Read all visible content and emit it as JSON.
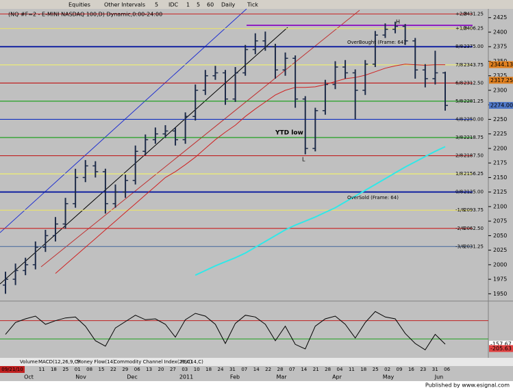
{
  "toolbar": [
    "Equities",
    "Other Intervals",
    "5",
    "IDC",
    "1",
    "5",
    "60",
    "Daily",
    "Tick"
  ],
  "tabs": [
    "Volume",
    "MACD(12,26,9,C)",
    "Money Flow(14)",
    "Commodity Channel Index(23,C)",
    "RSI(14,C)"
  ],
  "footer": "Published by www.esignal.com",
  "chart_data": {
    "type": "ohlc",
    "title": "(NQ #F=2 - E-MINI NASDAQ 100,D) Dynamic,0:00-24:00",
    "color": "#1c2a48",
    "open": [
      1965,
      1975,
      1990,
      2000,
      2030,
      2050,
      2070,
      2105,
      2150,
      2170,
      2160,
      2105,
      2125,
      2145,
      2195,
      2215,
      2225,
      2230,
      2215,
      2255,
      2300,
      2325,
      2330,
      2285,
      2330,
      2370,
      2385,
      2375,
      2335,
      2355,
      2285,
      2200,
      2265,
      2310,
      2340,
      2330,
      2300,
      2345,
      2395,
      2405,
      2410,
      2385,
      2335,
      2320,
      2330
    ],
    "high": [
      1988,
      2002,
      2012,
      2040,
      2060,
      2082,
      2115,
      2165,
      2180,
      2178,
      2165,
      2138,
      2155,
      2205,
      2224,
      2236,
      2240,
      2236,
      2262,
      2310,
      2335,
      2342,
      2335,
      2340,
      2378,
      2398,
      2401,
      2380,
      2365,
      2360,
      2290,
      2270,
      2318,
      2350,
      2352,
      2336,
      2352,
      2402,
      2415,
      2418,
      2414,
      2390,
      2345,
      2368,
      2332
    ],
    "low": [
      1950,
      1965,
      1982,
      1992,
      2022,
      2040,
      2062,
      2098,
      2142,
      2150,
      2088,
      2098,
      2115,
      2138,
      2188,
      2208,
      2218,
      2205,
      2208,
      2248,
      2292,
      2318,
      2275,
      2280,
      2325,
      2362,
      2368,
      2320,
      2325,
      2270,
      2190,
      2195,
      2258,
      2302,
      2320,
      2250,
      2292,
      2340,
      2390,
      2398,
      2378,
      2320,
      2305,
      2310,
      2265
    ],
    "close": [
      1975,
      1990,
      2000,
      2030,
      2050,
      2070,
      2105,
      2150,
      2170,
      2160,
      2105,
      2125,
      2145,
      2195,
      2215,
      2225,
      2230,
      2215,
      2255,
      2300,
      2325,
      2330,
      2285,
      2330,
      2370,
      2385,
      2375,
      2335,
      2355,
      2285,
      2200,
      2265,
      2310,
      2340,
      2330,
      2300,
      2345,
      2395,
      2405,
      2410,
      2385,
      2335,
      2320,
      2330,
      2274
    ],
    "overlays": [
      {
        "color": "#d02020",
        "values": [
          null,
          null,
          null,
          null,
          null,
          1985,
          2000,
          2015,
          2030,
          2045,
          2060,
          2075,
          2090,
          2105,
          2120,
          2135,
          2150,
          2160,
          2172,
          2185,
          2200,
          2215,
          2228,
          2240,
          2255,
          2268,
          2280,
          2292,
          2300,
          2305,
          2305,
          2306,
          2310,
          2315,
          2320,
          2322,
          2326,
          2332,
          2338,
          2342,
          2345,
          2344,
          2343,
          2344,
          2344
        ]
      },
      {
        "color": "#30e8e8",
        "values": [
          null,
          null,
          null,
          null,
          null,
          null,
          null,
          null,
          null,
          null,
          null,
          null,
          null,
          null,
          null,
          null,
          null,
          null,
          null,
          1982,
          1990,
          1998,
          2005,
          2012,
          2020,
          2030,
          2040,
          2050,
          2060,
          2068,
          2075,
          2082,
          2090,
          2098,
          2108,
          2118,
          2128,
          2138,
          2148,
          2158,
          2168,
          2177,
          2186,
          2195,
          2203
        ]
      }
    ],
    "ylim": [
      1937.5,
      2440
    ],
    "yticks": [
      1950,
      1975,
      2000,
      2025,
      2050,
      2075,
      2100,
      2125,
      2150,
      2175,
      2200,
      2225,
      2250,
      2275,
      2300,
      2325,
      2350,
      2375,
      2400,
      2425
    ],
    "levels": [
      {
        "name": "+2/8",
        "value": 2431.25,
        "color": "#c83030"
      },
      {
        "name": "+1/8",
        "value": 2406.25,
        "color": "#e8e070"
      },
      {
        "name": "8/8",
        "value": 2375,
        "label": "2375.00",
        "color": "#1020a0"
      },
      {
        "name": "7/8",
        "value": 2343.75,
        "color": "#f0f070"
      },
      {
        "name": "6/8",
        "value": 2312.5,
        "label": "2312.50",
        "color": "#c02020"
      },
      {
        "name": "5/8",
        "value": 2281.25,
        "color": "#20a020"
      },
      {
        "name": "4/8",
        "value": 2250,
        "label": "2250.00",
        "color": "#1030c0"
      },
      {
        "name": "3/8",
        "value": 2218.75,
        "color": "#20a020"
      },
      {
        "name": "2/8",
        "value": 2187.5,
        "label": "2187.50",
        "color": "#c02020"
      },
      {
        "name": "1/8",
        "value": 2156.25,
        "color": "#f0f070"
      },
      {
        "name": "0/8",
        "value": 2125,
        "label": "2125.00",
        "color": "#1020a0"
      },
      {
        "name": "-1/8",
        "value": 2093.75,
        "color": "#e8e070"
      },
      {
        "name": "-2/8",
        "value": 2062.5,
        "label": "2062.50",
        "color": "#c83030"
      },
      {
        "name": "-3/8",
        "value": 2031.25,
        "color": "#5070a0"
      }
    ],
    "price_boxes": [
      {
        "value": 2344.13,
        "color": "#e08020"
      },
      {
        "value": 2317.25,
        "color": "#e08020"
      },
      {
        "value": 2274,
        "label": "2274.00",
        "color": "#5078c8"
      }
    ],
    "annotations": [
      "YTD low",
      "L",
      "H",
      "OverBought (Frame: 64)",
      "OverSold (Frame: 64)"
    ],
    "x_labels": [
      "09/21/10",
      "11",
      "18",
      "25",
      "01",
      "08",
      "15",
      "22",
      "29",
      "06",
      "13",
      "20",
      "27",
      "03",
      "10",
      "18",
      "24",
      "31",
      "07",
      "14",
      "22",
      "28",
      "07",
      "14",
      "21",
      "28",
      "04",
      "11",
      "18",
      "25",
      "02",
      "09",
      "16",
      "23",
      "31",
      "06"
    ],
    "month_labels": [
      "Oct",
      "Nov",
      "Dec",
      "2011",
      "Feb",
      "Mar",
      "Apr",
      "May",
      "Jun"
    ],
    "oscillator": {
      "ylim": [
        -300,
        300
      ],
      "values": [
        -50,
        80,
        120,
        150,
        60,
        100,
        130,
        140,
        40,
        -120,
        -180,
        20,
        90,
        160,
        110,
        120,
        60,
        -80,
        110,
        180,
        150,
        60,
        -150,
        70,
        160,
        140,
        60,
        -120,
        40,
        -160,
        -210,
        40,
        120,
        150,
        60,
        -90,
        80,
        200,
        140,
        120,
        -40,
        -150,
        -220,
        -50,
        -157.67
      ],
      "levels": [
        {
          "value": 100,
          "color": "#c02020"
        },
        {
          "value": -100,
          "color": "#20a020"
        }
      ],
      "value_boxes": [
        {
          "value": -157.67,
          "color": "#ffffff"
        },
        {
          "value": -205.63,
          "color": "#e04040"
        }
      ]
    }
  }
}
